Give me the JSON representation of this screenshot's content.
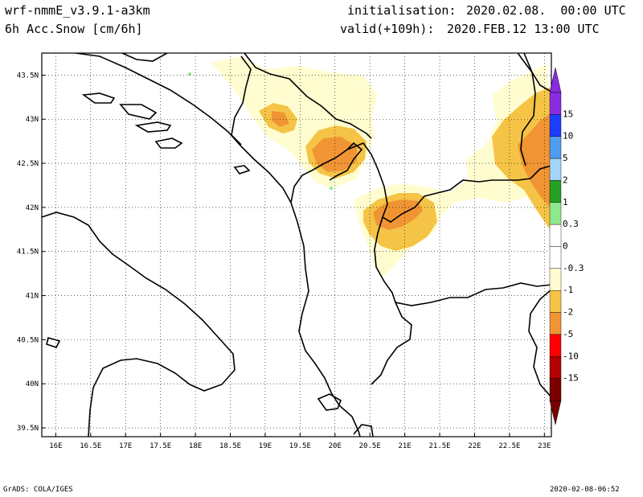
{
  "header": {
    "model": "wrf-nmmE_v3.9.1-a3km",
    "field": "6h Acc.Snow [cm/6h]",
    "init_label": "initialisation:",
    "init_value": "2020.02.08.  00:00 UTC",
    "valid_label": "valid(+109h):",
    "valid_value": "2020.FEB.12 13:00 UTC"
  },
  "footer": {
    "left": "GrADS: COLA/IGES",
    "right": "2020-02-08-06:52"
  },
  "map": {
    "lon_ticks": [
      "16E",
      "16.5E",
      "17E",
      "17.5E",
      "18E",
      "18.5E",
      "19E",
      "19.5E",
      "20E",
      "20.5E",
      "21E",
      "21.5E",
      "22E",
      "22.5E",
      "23E"
    ],
    "lat_ticks": [
      "43.5N",
      "43N",
      "42.5N",
      "42N",
      "41.5N",
      "41N",
      "40.5N",
      "40N",
      "39.5N"
    ],
    "lon_range": [
      15.8,
      23.1
    ],
    "lat_range": [
      39.4,
      43.75
    ]
  },
  "colorbar": {
    "segments": [
      {
        "color": "#8a2be2"
      },
      {
        "color": "#1e3cff"
      },
      {
        "color": "#4f9cf0"
      },
      {
        "color": "#a4d4f7"
      },
      {
        "color": "#26a126"
      },
      {
        "color": "#8ee88e"
      },
      {
        "color": "#ffffff"
      },
      {
        "color": "#ffffff"
      },
      {
        "color": "#fffdd0"
      },
      {
        "color": "#f5c446"
      },
      {
        "color": "#f19434"
      },
      {
        "color": "#ff0000"
      },
      {
        "color": "#b30000"
      },
      {
        "color": "#7a0000"
      }
    ],
    "labels": [
      "15",
      "10",
      "5",
      "2",
      "1",
      "0.3",
      "0",
      "-0.3",
      "-1",
      "-2",
      "-5",
      "-10",
      "-15"
    ],
    "colors": {
      "light_yellow": "#fffdd0",
      "yellow": "#f5c446",
      "orange": "#f19434",
      "green": "#8ee88e"
    }
  }
}
